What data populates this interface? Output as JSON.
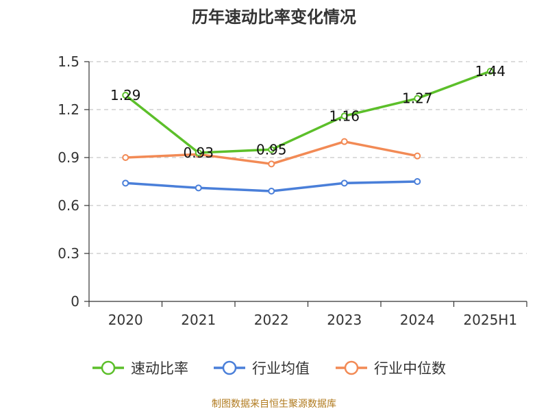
{
  "chart_data": {
    "type": "line",
    "title": "历年速动比率变化情况",
    "categories": [
      "2020",
      "2021",
      "2022",
      "2023",
      "2024",
      "2025H1"
    ],
    "ylim": [
      0,
      1.5
    ],
    "yticks": [
      "0",
      "0.3",
      "0.6",
      "0.9",
      "1.2",
      "1.5"
    ],
    "grid": true,
    "legend_position": "bottom",
    "series": [
      {
        "name": "速动比率",
        "color": "#5cbf2a",
        "values": [
          1.29,
          0.93,
          0.95,
          1.16,
          1.27,
          1.44
        ],
        "labels": [
          "1.29",
          "0.93",
          "0.95",
          "1.16",
          "1.27",
          "1.44"
        ]
      },
      {
        "name": "行业均值",
        "color": "#4a7fd9",
        "values": [
          0.74,
          0.71,
          0.69,
          0.74,
          0.75,
          null
        ]
      },
      {
        "name": "行业中位数",
        "color": "#f28a55",
        "values": [
          0.9,
          0.92,
          0.86,
          1.0,
          0.91,
          null
        ]
      }
    ]
  },
  "source_text": "制图数据来自恒生聚源数据库"
}
